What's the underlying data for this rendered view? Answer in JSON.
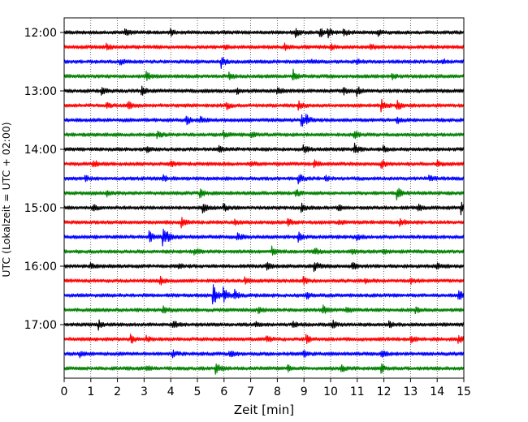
{
  "chart_data": {
    "type": "line",
    "xlabel": "Zeit  [min]",
    "ylabel": "UTC (Lokalzeit = UTC + 02:00)",
    "x_ticks": [
      "0",
      "1",
      "2",
      "3",
      "4",
      "5",
      "6",
      "7",
      "8",
      "9",
      "10",
      "11",
      "12",
      "13",
      "14",
      "15"
    ],
    "y_ticks": [
      "12:00",
      "13:00",
      "14:00",
      "15:00",
      "16:00",
      "17:00"
    ],
    "xlim": [
      0,
      15
    ],
    "line_minutes": 15,
    "start_time": "12:00",
    "end_time": "17:45",
    "grid": "vertical-dotted",
    "series_colors": [
      "#000000",
      "#ff0000",
      "#0000ff",
      "#008000"
    ],
    "series": [
      {
        "start": "12:00",
        "events": [
          [
            2.3,
            0.25
          ],
          [
            4.0,
            0.25
          ],
          [
            8.7,
            0.3
          ],
          [
            9.6,
            0.5
          ],
          [
            9.9,
            0.4
          ],
          [
            10.5,
            0.3
          ],
          [
            11.8,
            0.2
          ]
        ]
      },
      {
        "start": "12:15",
        "events": [
          [
            1.6,
            0.2
          ],
          [
            6.0,
            0.2
          ],
          [
            8.3,
            0.3
          ],
          [
            10.0,
            0.2
          ],
          [
            11.5,
            0.2
          ]
        ]
      },
      {
        "start": "12:30",
        "events": [
          [
            2.1,
            0.2
          ],
          [
            5.9,
            0.45
          ],
          [
            9.3,
            0.2
          ],
          [
            11.0,
            0.2
          ],
          [
            14.2,
            0.2
          ]
        ]
      },
      {
        "start": "12:45",
        "events": [
          [
            3.1,
            0.3
          ],
          [
            6.2,
            0.25
          ],
          [
            8.6,
            0.5
          ],
          [
            12.3,
            0.2
          ]
        ]
      },
      {
        "start": "13:00",
        "events": [
          [
            1.4,
            0.25
          ],
          [
            2.9,
            0.35
          ],
          [
            6.5,
            0.2
          ],
          [
            8.0,
            0.3
          ],
          [
            10.5,
            0.25
          ],
          [
            11.0,
            0.35
          ]
        ]
      },
      {
        "start": "13:15",
        "events": [
          [
            1.6,
            0.25
          ],
          [
            2.4,
            0.3
          ],
          [
            6.1,
            0.3
          ],
          [
            8.8,
            0.3
          ],
          [
            11.9,
            0.45
          ],
          [
            12.5,
            0.4
          ]
        ]
      },
      {
        "start": "13:30",
        "events": [
          [
            4.6,
            0.35
          ],
          [
            5.1,
            0.25
          ],
          [
            8.9,
            0.6
          ],
          [
            9.1,
            0.4
          ],
          [
            12.5,
            0.25
          ]
        ]
      },
      {
        "start": "13:45",
        "events": [
          [
            3.5,
            0.25
          ],
          [
            6.0,
            0.25
          ],
          [
            7.0,
            0.2
          ],
          [
            10.9,
            0.3
          ]
        ]
      },
      {
        "start": "14:00",
        "events": [
          [
            3.1,
            0.2
          ],
          [
            5.8,
            0.25
          ],
          [
            9.0,
            0.35
          ],
          [
            10.9,
            0.4
          ],
          [
            12.0,
            0.2
          ]
        ]
      },
      {
        "start": "14:15",
        "events": [
          [
            1.1,
            0.3
          ],
          [
            4.0,
            0.25
          ],
          [
            7.0,
            0.2
          ],
          [
            9.4,
            0.25
          ],
          [
            11.9,
            0.35
          ],
          [
            14.0,
            0.2
          ]
        ]
      },
      {
        "start": "14:30",
        "events": [
          [
            0.8,
            0.2
          ],
          [
            3.7,
            0.25
          ],
          [
            8.8,
            0.4
          ],
          [
            9.8,
            0.2
          ],
          [
            13.7,
            0.2
          ]
        ]
      },
      {
        "start": "14:45",
        "events": [
          [
            1.6,
            0.2
          ],
          [
            5.1,
            0.35
          ],
          [
            8.7,
            0.3
          ],
          [
            12.5,
            0.5
          ]
        ]
      },
      {
        "start": "15:00",
        "events": [
          [
            1.1,
            0.2
          ],
          [
            5.2,
            0.4
          ],
          [
            6.0,
            0.25
          ],
          [
            8.9,
            0.3
          ],
          [
            10.3,
            0.2
          ],
          [
            13.3,
            0.3
          ],
          [
            14.9,
            0.5
          ]
        ]
      },
      {
        "start": "15:15",
        "events": [
          [
            4.4,
            0.35
          ],
          [
            6.4,
            0.2
          ],
          [
            8.4,
            0.3
          ],
          [
            10.3,
            0.2
          ],
          [
            12.6,
            0.35
          ]
        ]
      },
      {
        "start": "15:30",
        "events": [
          [
            3.2,
            0.45
          ],
          [
            3.7,
            0.75
          ],
          [
            3.9,
            0.4
          ],
          [
            6.5,
            0.35
          ],
          [
            8.8,
            0.4
          ],
          [
            11.0,
            0.2
          ]
        ]
      },
      {
        "start": "15:45",
        "events": [
          [
            4.9,
            0.2
          ],
          [
            7.8,
            0.35
          ],
          [
            9.4,
            0.25
          ],
          [
            10.8,
            0.2
          ],
          [
            12.0,
            0.2
          ]
        ]
      },
      {
        "start": "16:00",
        "events": [
          [
            1.0,
            0.3
          ],
          [
            4.3,
            0.2
          ],
          [
            7.6,
            0.3
          ],
          [
            9.4,
            0.45
          ],
          [
            10.8,
            0.3
          ],
          [
            14.0,
            0.2
          ]
        ]
      },
      {
        "start": "16:15",
        "events": [
          [
            3.6,
            0.35
          ],
          [
            6.8,
            0.2
          ],
          [
            9.0,
            0.3
          ],
          [
            11.3,
            0.2
          ],
          [
            13.0,
            0.25
          ]
        ]
      },
      {
        "start": "16:30",
        "events": [
          [
            5.6,
            0.85
          ],
          [
            6.0,
            0.6
          ],
          [
            6.4,
            0.4
          ],
          [
            9.1,
            0.3
          ],
          [
            14.8,
            0.55
          ]
        ]
      },
      {
        "start": "16:45",
        "events": [
          [
            3.7,
            0.3
          ],
          [
            7.3,
            0.2
          ],
          [
            9.7,
            0.4
          ],
          [
            10.6,
            0.25
          ],
          [
            13.2,
            0.2
          ]
        ]
      },
      {
        "start": "17:00",
        "events": [
          [
            1.3,
            0.35
          ],
          [
            4.1,
            0.3
          ],
          [
            7.2,
            0.2
          ],
          [
            8.6,
            0.2
          ],
          [
            10.1,
            0.25
          ],
          [
            12.2,
            0.25
          ]
        ]
      },
      {
        "start": "17:15",
        "events": [
          [
            2.5,
            0.35
          ],
          [
            3.1,
            0.2
          ],
          [
            7.6,
            0.25
          ],
          [
            9.1,
            0.3
          ],
          [
            13.0,
            0.3
          ],
          [
            14.8,
            0.3
          ]
        ]
      },
      {
        "start": "17:30",
        "events": [
          [
            0.6,
            0.2
          ],
          [
            4.1,
            0.2
          ],
          [
            6.2,
            0.25
          ],
          [
            9.0,
            0.25
          ],
          [
            11.9,
            0.35
          ]
        ]
      },
      {
        "start": "17:45",
        "events": [
          [
            3.1,
            0.2
          ],
          [
            5.7,
            0.45
          ],
          [
            8.4,
            0.2
          ],
          [
            10.4,
            0.3
          ],
          [
            11.9,
            0.35
          ]
        ]
      }
    ]
  }
}
